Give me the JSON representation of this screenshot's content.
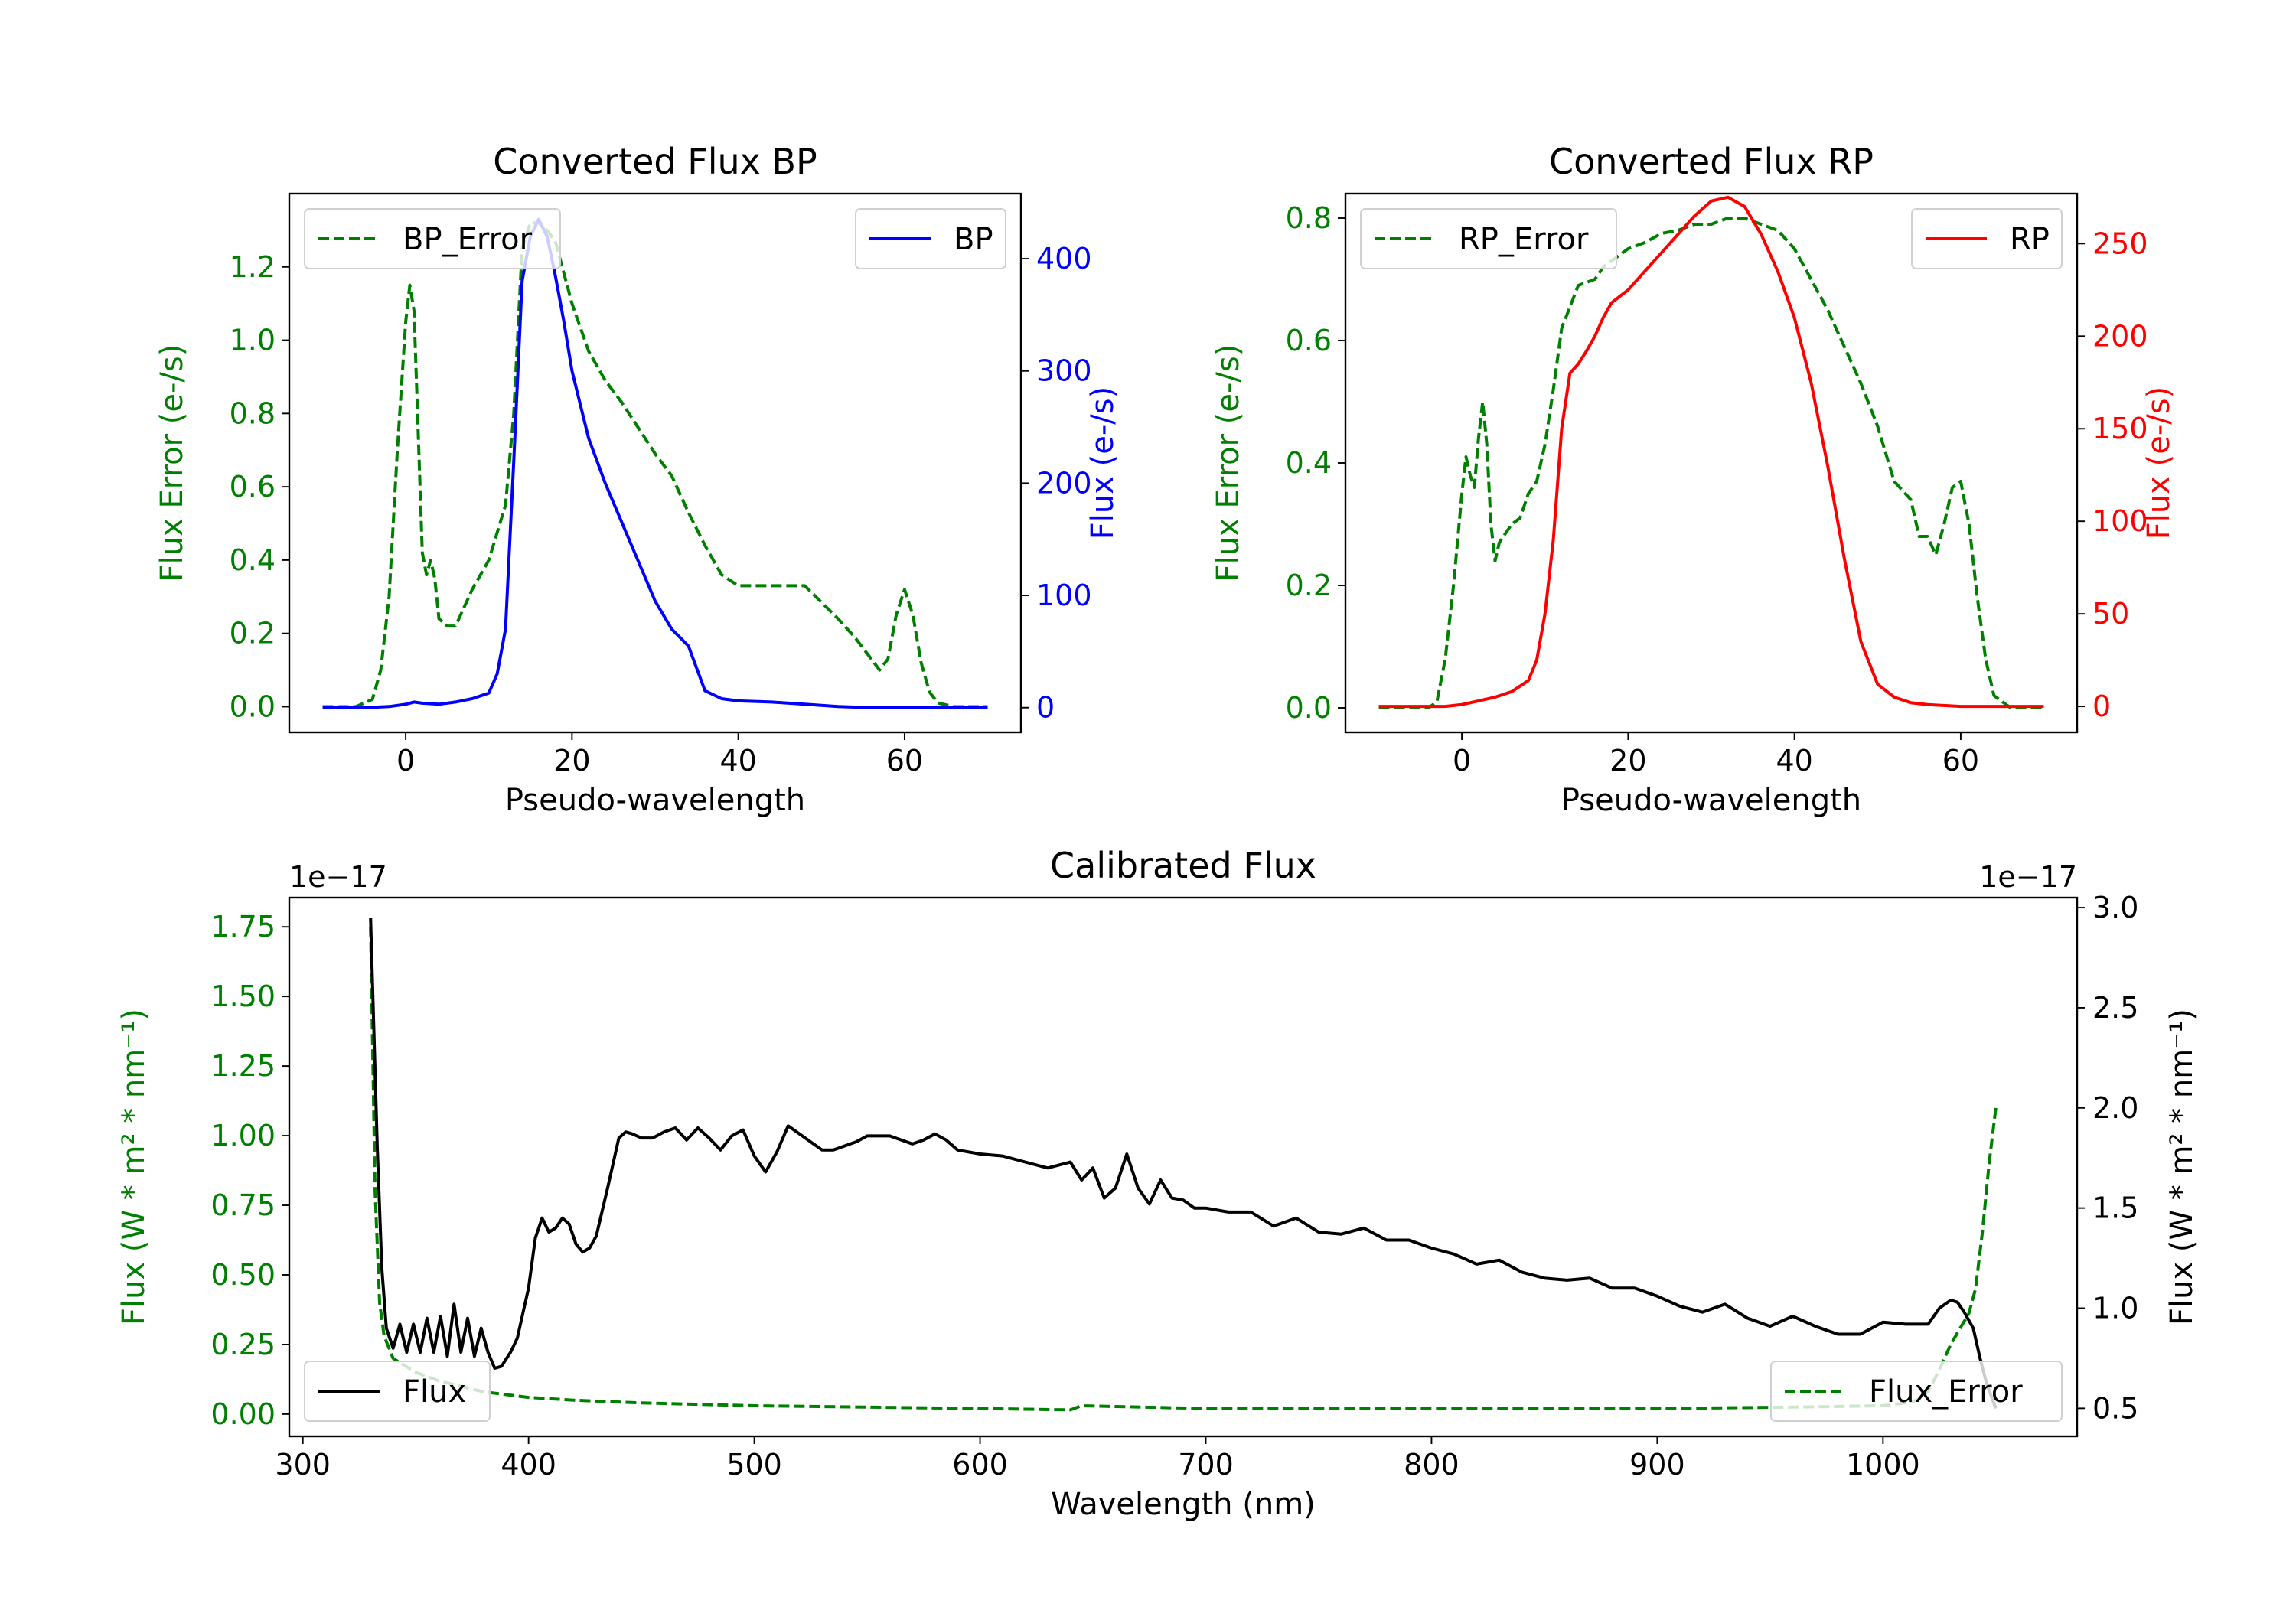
{
  "chart_data": [
    {
      "id": "bp",
      "type": "line",
      "title": "Converted Flux BP",
      "xlabel": "Pseudo-wavelength",
      "ylabel_left": "Flux Error (e-/s)",
      "ylabel_right": "Flux (e-/s)",
      "xlim": [
        -14,
        74
      ],
      "ylim_left": [
        -0.07,
        1.4
      ],
      "ylim_right": [
        -22,
        458
      ],
      "xticks": [
        0,
        20,
        40,
        60
      ],
      "yticks_left": [
        0.0,
        0.2,
        0.4,
        0.6,
        0.8,
        1.0,
        1.2
      ],
      "yticks_right": [
        0,
        100,
        200,
        300,
        400
      ],
      "colors": {
        "left_axis": "#008000",
        "right_axis": "#0000ff"
      },
      "legend_left": {
        "label": "BP_Error",
        "position": "upper left"
      },
      "legend_right": {
        "label": "BP",
        "position": "upper right"
      },
      "series": [
        {
          "name": "BP_Error",
          "axis": "left",
          "color": "#008000",
          "dash": true,
          "x": [
            -10,
            -6,
            -4,
            -3,
            -2,
            -1,
            0,
            0.5,
            1,
            1.5,
            2,
            2.5,
            3,
            3.5,
            4,
            4.5,
            5,
            6,
            8,
            9,
            10,
            12,
            13,
            14,
            15,
            16,
            17,
            18,
            20,
            22,
            24,
            26,
            28,
            30,
            32,
            34,
            36,
            38,
            40,
            44,
            48,
            52,
            54,
            56,
            57,
            58,
            59,
            60,
            61,
            62,
            63,
            64,
            66,
            70
          ],
          "y": [
            0,
            0,
            0.02,
            0.1,
            0.3,
            0.7,
            1.05,
            1.15,
            1.08,
            0.75,
            0.42,
            0.36,
            0.4,
            0.35,
            0.24,
            0.23,
            0.22,
            0.22,
            0.32,
            0.36,
            0.4,
            0.55,
            0.8,
            1.25,
            1.32,
            1.32,
            1.3,
            1.27,
            1.1,
            0.97,
            0.89,
            0.83,
            0.76,
            0.69,
            0.63,
            0.53,
            0.44,
            0.36,
            0.33,
            0.33,
            0.33,
            0.24,
            0.19,
            0.13,
            0.1,
            0.13,
            0.25,
            0.32,
            0.25,
            0.12,
            0.04,
            0.01,
            0,
            0
          ]
        },
        {
          "name": "BP",
          "axis": "right",
          "color": "#0000ff",
          "dash": false,
          "x": [
            -10,
            -5,
            -2,
            0,
            1,
            2,
            4,
            6,
            8,
            10,
            11,
            12,
            13,
            14,
            15,
            16,
            17,
            18,
            19,
            20,
            22,
            24,
            26,
            28,
            30,
            32,
            34,
            36,
            38,
            40,
            44,
            48,
            52,
            56,
            60,
            64,
            70
          ],
          "y": [
            0,
            0,
            1,
            3,
            5,
            4,
            3,
            5,
            8,
            13,
            30,
            70,
            220,
            380,
            420,
            435,
            420,
            385,
            345,
            300,
            240,
            200,
            165,
            130,
            95,
            70,
            55,
            15,
            8,
            6,
            5,
            3,
            1,
            0,
            0,
            0,
            0
          ]
        }
      ]
    },
    {
      "id": "rp",
      "type": "line",
      "title": "Converted Flux RP",
      "xlabel": "Pseudo-wavelength",
      "ylabel_left": "Flux Error (e-/s)",
      "ylabel_right": "Flux (e-/s)",
      "xlim": [
        -14,
        74
      ],
      "ylim_left": [
        -0.04,
        0.84
      ],
      "ylim_right": [
        -14,
        277
      ],
      "xticks": [
        0,
        20,
        40,
        60
      ],
      "yticks_left": [
        0.0,
        0.2,
        0.4,
        0.6,
        0.8
      ],
      "yticks_right": [
        0,
        50,
        100,
        150,
        200,
        250
      ],
      "colors": {
        "left_axis": "#008000",
        "right_axis": "#ff0000"
      },
      "legend_left": {
        "label": "RP_Error",
        "position": "upper left"
      },
      "legend_right": {
        "label": "RP",
        "position": "upper right"
      },
      "series": [
        {
          "name": "RP_Error",
          "axis": "left",
          "color": "#008000",
          "dash": true,
          "x": [
            -10,
            -4,
            -3,
            -2,
            -1,
            0,
            0.5,
            1,
            1.5,
            2,
            2.5,
            3,
            3.5,
            4,
            4.5,
            5,
            6,
            7,
            8,
            9,
            10,
            11,
            12,
            14,
            16,
            17,
            18,
            20,
            22,
            24,
            26,
            28,
            30,
            32,
            34,
            36,
            38,
            40,
            42,
            44,
            46,
            48,
            50,
            52,
            54,
            55,
            56,
            57,
            58,
            59,
            60,
            61,
            62,
            63,
            64,
            66,
            70
          ],
          "y": [
            0,
            0,
            0.01,
            0.08,
            0.2,
            0.35,
            0.41,
            0.38,
            0.36,
            0.44,
            0.5,
            0.43,
            0.3,
            0.24,
            0.27,
            0.28,
            0.3,
            0.31,
            0.35,
            0.37,
            0.43,
            0.52,
            0.62,
            0.69,
            0.7,
            0.72,
            0.73,
            0.75,
            0.76,
            0.775,
            0.78,
            0.79,
            0.79,
            0.8,
            0.8,
            0.79,
            0.78,
            0.75,
            0.7,
            0.65,
            0.59,
            0.53,
            0.46,
            0.37,
            0.34,
            0.28,
            0.28,
            0.25,
            0.3,
            0.36,
            0.37,
            0.3,
            0.18,
            0.08,
            0.02,
            0,
            0
          ]
        },
        {
          "name": "RP",
          "axis": "right",
          "color": "#ff0000",
          "dash": false,
          "x": [
            -10,
            -5,
            -2,
            0,
            2,
            4,
            6,
            8,
            9,
            10,
            11,
            12,
            13,
            14,
            15,
            16,
            17,
            18,
            20,
            22,
            24,
            26,
            28,
            30,
            32,
            34,
            36,
            38,
            40,
            42,
            44,
            46,
            48,
            50,
            52,
            54,
            56,
            60,
            64,
            70
          ],
          "y": [
            0,
            0,
            0,
            1,
            3,
            5,
            8,
            14,
            25,
            50,
            90,
            150,
            180,
            185,
            192,
            200,
            210,
            218,
            225,
            235,
            245,
            255,
            265,
            273,
            275,
            270,
            255,
            235,
            210,
            175,
            130,
            80,
            35,
            12,
            5,
            2,
            1,
            0,
            0,
            0
          ]
        }
      ]
    },
    {
      "id": "calibrated",
      "type": "line",
      "title": "Calibrated Flux",
      "xlabel": "Wavelength (nm)",
      "ylabel_left": "Flux (W * m² * nm⁻¹)",
      "ylabel_right": "Flux (W * m² * nm⁻¹)",
      "offset_left": "1e−17",
      "offset_right": "1e−17",
      "xlim": [
        294,
        1086
      ],
      "ylim_left": [
        -0.08,
        1.855
      ],
      "ylim_right": [
        0.36,
        3.05
      ],
      "xticks": [
        300,
        400,
        500,
        600,
        700,
        800,
        900,
        1000
      ],
      "yticks_left": [
        0.0,
        0.25,
        0.5,
        0.75,
        1.0,
        1.25,
        1.5,
        1.75
      ],
      "ytick_labels_left": [
        "0.00",
        "0.25",
        "0.50",
        "0.75",
        "1.00",
        "1.25",
        "1.50",
        "1.75"
      ],
      "yticks_right": [
        0.5,
        1.0,
        1.5,
        2.0,
        2.5,
        3.0
      ],
      "ytick_labels_right": [
        "0.5",
        "1.0",
        "1.5",
        "2.0",
        "2.5",
        "3.0"
      ],
      "colors": {
        "left_axis": "#008000",
        "right_axis": "#000000"
      },
      "legend_left": {
        "label": "Flux",
        "position": "lower left"
      },
      "legend_right": {
        "label": "Flux_Error",
        "position": "lower right"
      },
      "series": [
        {
          "name": "Flux_Error",
          "axis": "left",
          "color": "#008000",
          "dash": true,
          "x": [
            330,
            332,
            334,
            336,
            340,
            350,
            360,
            370,
            380,
            390,
            400,
            420,
            450,
            500,
            550,
            600,
            640,
            645,
            700,
            800,
            900,
            960,
            1000,
            1010,
            1015,
            1020,
            1025,
            1030,
            1035,
            1038,
            1041,
            1044,
            1047,
            1050
          ],
          "y": [
            1.75,
            0.8,
            0.4,
            0.28,
            0.2,
            0.15,
            0.12,
            0.1,
            0.08,
            0.07,
            0.06,
            0.05,
            0.04,
            0.03,
            0.025,
            0.02,
            0.015,
            0.03,
            0.02,
            0.02,
            0.02,
            0.025,
            0.03,
            0.04,
            0.05,
            0.08,
            0.16,
            0.25,
            0.32,
            0.36,
            0.45,
            0.65,
            0.9,
            1.1
          ]
        },
        {
          "name": "Flux",
          "axis": "right",
          "color": "#000000",
          "dash": false,
          "x": [
            330,
            333,
            335,
            337,
            340,
            343,
            346,
            349,
            352,
            355,
            358,
            361,
            364,
            367,
            370,
            373,
            376,
            379,
            382,
            385,
            388,
            392,
            395,
            398,
            400,
            403,
            406,
            409,
            412,
            415,
            418,
            421,
            424,
            427,
            430,
            435,
            440,
            443,
            446,
            450,
            455,
            460,
            465,
            470,
            475,
            480,
            485,
            490,
            495,
            500,
            505,
            510,
            515,
            520,
            525,
            530,
            535,
            540,
            545,
            550,
            560,
            570,
            575,
            580,
            585,
            590,
            600,
            610,
            620,
            630,
            640,
            645,
            650,
            655,
            660,
            665,
            670,
            675,
            680,
            685,
            690,
            695,
            700,
            710,
            720,
            730,
            740,
            750,
            760,
            770,
            780,
            790,
            800,
            810,
            820,
            830,
            840,
            850,
            860,
            870,
            880,
            890,
            900,
            910,
            920,
            930,
            940,
            950,
            960,
            970,
            980,
            990,
            1000,
            1010,
            1020,
            1025,
            1030,
            1033,
            1036,
            1040,
            1043,
            1046,
            1050
          ],
          "y": [
            2.95,
            1.8,
            1.2,
            0.9,
            0.8,
            0.92,
            0.78,
            0.92,
            0.78,
            0.95,
            0.78,
            0.96,
            0.76,
            1.02,
            0.78,
            0.95,
            0.76,
            0.9,
            0.78,
            0.7,
            0.71,
            0.78,
            0.85,
            1.0,
            1.1,
            1.35,
            1.45,
            1.38,
            1.4,
            1.45,
            1.42,
            1.32,
            1.28,
            1.3,
            1.36,
            1.6,
            1.85,
            1.88,
            1.87,
            1.85,
            1.85,
            1.88,
            1.9,
            1.84,
            1.9,
            1.85,
            1.79,
            1.86,
            1.89,
            1.76,
            1.68,
            1.78,
            1.91,
            1.87,
            1.83,
            1.79,
            1.79,
            1.81,
            1.83,
            1.86,
            1.86,
            1.82,
            1.84,
            1.87,
            1.84,
            1.79,
            1.77,
            1.76,
            1.73,
            1.7,
            1.73,
            1.64,
            1.7,
            1.55,
            1.6,
            1.77,
            1.6,
            1.52,
            1.64,
            1.55,
            1.54,
            1.5,
            1.5,
            1.48,
            1.48,
            1.41,
            1.45,
            1.38,
            1.37,
            1.4,
            1.34,
            1.34,
            1.3,
            1.27,
            1.22,
            1.24,
            1.18,
            1.15,
            1.14,
            1.15,
            1.1,
            1.1,
            1.06,
            1.01,
            0.98,
            1.02,
            0.95,
            0.91,
            0.96,
            0.91,
            0.87,
            0.87,
            0.93,
            0.92,
            0.92,
            1.0,
            1.04,
            1.03,
            0.98,
            0.9,
            0.75,
            0.62,
            0.5
          ]
        }
      ]
    }
  ]
}
